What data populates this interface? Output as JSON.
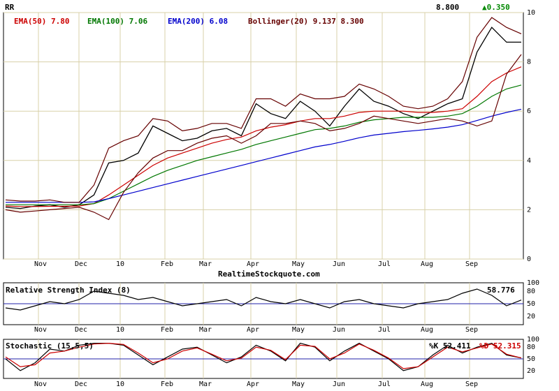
{
  "chart_data": [
    {
      "type": "line",
      "panel": "price",
      "symbol": "RR",
      "last_price": "8.800",
      "change": "▲0.350",
      "site": "RealtimeStockquote.com",
      "x_labels": [
        "Nov",
        "Dec",
        "10",
        "Feb",
        "Mar",
        "Apr",
        "May",
        "Jun",
        "Jul",
        "Aug",
        "Sep"
      ],
      "y_ticks": [
        0,
        2,
        4,
        6,
        8,
        10
      ],
      "ylim": [
        0,
        10
      ],
      "legend": [
        {
          "text": "EMA(50) 7.80",
          "color": "#cc0000"
        },
        {
          "text": "EMA(100) 7.06",
          "color": "#007700"
        },
        {
          "text": "EMA(200) 6.08",
          "color": "#0000cc"
        },
        {
          "text": "Bollinger(20) 9.137 8.300",
          "color": "#660000"
        }
      ],
      "series": [
        {
          "name": "Price",
          "color": "#000000",
          "values": [
            2.1,
            2.05,
            2.15,
            2.2,
            2.1,
            2.2,
            2.6,
            3.9,
            4.0,
            4.3,
            5.4,
            5.1,
            4.8,
            4.9,
            5.2,
            5.3,
            5.0,
            6.3,
            5.9,
            5.7,
            6.4,
            6.0,
            5.4,
            6.2,
            6.9,
            6.4,
            6.2,
            5.9,
            5.7,
            6.0,
            6.3,
            6.5,
            8.4,
            9.4,
            8.8,
            8.8
          ]
        },
        {
          "name": "EMA(50)",
          "color": "#cc0000",
          "values": [
            2.15,
            2.13,
            2.13,
            2.14,
            2.14,
            2.15,
            2.25,
            2.6,
            3.0,
            3.4,
            3.8,
            4.1,
            4.3,
            4.5,
            4.7,
            4.85,
            4.95,
            5.2,
            5.35,
            5.45,
            5.6,
            5.7,
            5.7,
            5.8,
            5.95,
            6.0,
            6.0,
            6.0,
            5.95,
            5.95,
            6.0,
            6.1,
            6.6,
            7.2,
            7.55,
            7.8
          ]
        },
        {
          "name": "EMA(100)",
          "color": "#007700",
          "values": [
            2.2,
            2.2,
            2.2,
            2.2,
            2.2,
            2.2,
            2.25,
            2.45,
            2.75,
            3.05,
            3.35,
            3.6,
            3.8,
            4.0,
            4.15,
            4.3,
            4.45,
            4.65,
            4.8,
            4.95,
            5.1,
            5.25,
            5.3,
            5.4,
            5.55,
            5.65,
            5.7,
            5.75,
            5.75,
            5.75,
            5.8,
            5.9,
            6.2,
            6.6,
            6.9,
            7.06
          ]
        },
        {
          "name": "EMA(200)",
          "color": "#0000cc",
          "values": [
            2.3,
            2.3,
            2.3,
            2.3,
            2.3,
            2.3,
            2.32,
            2.45,
            2.6,
            2.75,
            2.9,
            3.05,
            3.2,
            3.35,
            3.5,
            3.65,
            3.8,
            3.95,
            4.1,
            4.25,
            4.4,
            4.55,
            4.65,
            4.78,
            4.92,
            5.03,
            5.1,
            5.17,
            5.22,
            5.28,
            5.35,
            5.45,
            5.62,
            5.8,
            5.95,
            6.08
          ]
        },
        {
          "name": "Bollinger upper",
          "color": "#660000",
          "values": [
            2.4,
            2.35,
            2.35,
            2.4,
            2.3,
            2.3,
            3.0,
            4.5,
            4.8,
            5.0,
            5.7,
            5.6,
            5.2,
            5.3,
            5.5,
            5.5,
            5.3,
            6.5,
            6.5,
            6.2,
            6.7,
            6.5,
            6.5,
            6.6,
            7.1,
            6.9,
            6.6,
            6.2,
            6.1,
            6.2,
            6.5,
            7.2,
            9.0,
            9.8,
            9.4,
            9.14
          ]
        },
        {
          "name": "Bollinger lower",
          "color": "#660000",
          "values": [
            2.0,
            1.9,
            1.95,
            2.0,
            2.05,
            2.1,
            1.9,
            1.6,
            2.7,
            3.5,
            4.1,
            4.4,
            4.4,
            4.7,
            4.9,
            5.0,
            4.7,
            5.0,
            5.5,
            5.5,
            5.6,
            5.5,
            5.2,
            5.3,
            5.5,
            5.8,
            5.7,
            5.6,
            5.5,
            5.6,
            5.7,
            5.6,
            5.4,
            5.6,
            7.5,
            8.3
          ]
        }
      ]
    },
    {
      "type": "line",
      "panel": "rsi",
      "title": "Relative Strength Index (8)",
      "last_value": "58.776",
      "x_labels": [
        "Nov",
        "Dec",
        "10",
        "Feb",
        "Mar",
        "Apr",
        "May",
        "Jun",
        "Jul",
        "Aug",
        "Sep"
      ],
      "y_ticks": [
        20,
        50,
        80,
        100
      ],
      "ylim": [
        0,
        100
      ],
      "series": [
        {
          "name": "RSI",
          "color": "#000000",
          "values": [
            40,
            35,
            45,
            55,
            50,
            60,
            80,
            75,
            70,
            60,
            65,
            55,
            45,
            50,
            55,
            60,
            45,
            65,
            55,
            50,
            60,
            50,
            40,
            55,
            60,
            50,
            45,
            40,
            50,
            55,
            60,
            75,
            85,
            70,
            45,
            58.776
          ]
        }
      ]
    },
    {
      "type": "line",
      "panel": "stochastic",
      "title": "Stochastic (15,5,5)",
      "k_label": "%K 52.411",
      "d_label": "%D 52.315",
      "x_labels": [
        "Nov",
        "Dec",
        "10",
        "Feb",
        "Mar",
        "Apr",
        "May",
        "Jun",
        "Jul",
        "Aug",
        "Sep"
      ],
      "y_ticks": [
        20,
        50,
        80,
        100
      ],
      "ylim": [
        0,
        100
      ],
      "series": [
        {
          "name": "%K",
          "color": "#000000",
          "values": [
            50,
            20,
            40,
            75,
            70,
            85,
            90,
            90,
            85,
            60,
            35,
            55,
            75,
            80,
            60,
            40,
            55,
            85,
            70,
            45,
            90,
            80,
            45,
            70,
            90,
            70,
            50,
            20,
            30,
            60,
            85,
            65,
            80,
            90,
            60,
            52.411
          ]
        },
        {
          "name": "%D",
          "color": "#cc0000",
          "values": [
            55,
            30,
            35,
            65,
            70,
            80,
            88,
            90,
            87,
            65,
            40,
            50,
            70,
            78,
            62,
            45,
            52,
            80,
            72,
            48,
            85,
            82,
            50,
            65,
            88,
            72,
            52,
            25,
            30,
            55,
            80,
            68,
            78,
            88,
            62,
            52.315
          ]
        }
      ]
    }
  ]
}
